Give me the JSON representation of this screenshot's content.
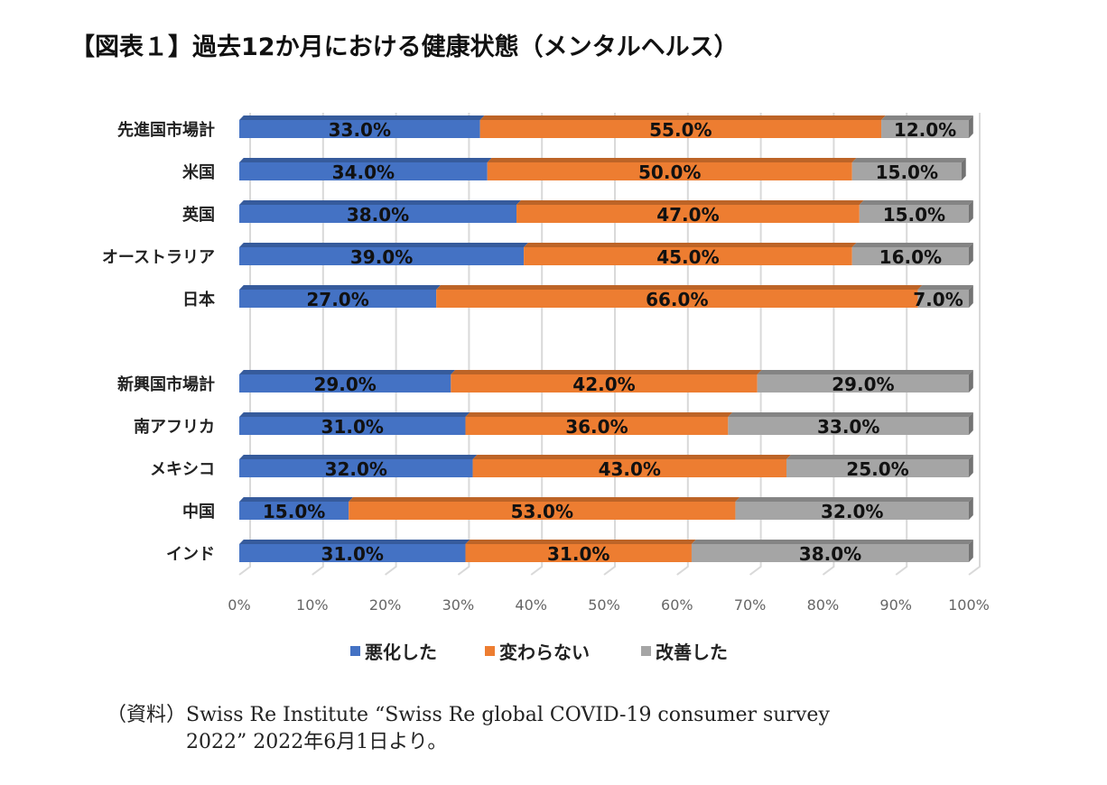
{
  "title": "【図表１】過去12か月における健康状態（メンタルヘルス）",
  "chart_data": {
    "type": "bar",
    "orientation": "horizontal",
    "stacked": "percent",
    "style": "3d",
    "categories": [
      "先進国市場計",
      "米国",
      "英国",
      "オーストラリア",
      "日本",
      "",
      "新興国市場計",
      "南アフリカ",
      "メキシコ",
      "中国",
      "インド"
    ],
    "series": [
      {
        "name": "悪化した",
        "color": "#4472C4",
        "values": [
          33,
          34,
          38,
          39,
          27,
          null,
          29,
          31,
          32,
          15,
          31
        ],
        "labels": [
          "33.0%",
          "34.0%",
          "38.0%",
          "39.0%",
          "27.0%",
          "",
          "29.0%",
          "31.0%",
          "32.0%",
          "15.0%",
          "31.0%"
        ]
      },
      {
        "name": "変わらない",
        "color": "#ED7D31",
        "values": [
          55,
          50,
          47,
          45,
          66,
          null,
          42,
          36,
          43,
          53,
          31
        ],
        "labels": [
          "55.0%",
          "50.0%",
          "47.0%",
          "45.0%",
          "66.0%",
          "",
          "42.0%",
          "36.0%",
          "43.0%",
          "53.0%",
          "31.0%"
        ]
      },
      {
        "name": "改善した",
        "color": "#A5A5A5",
        "values": [
          12,
          15,
          15,
          16,
          7,
          null,
          29,
          33,
          25,
          32,
          38
        ],
        "labels": [
          "12.0%",
          "15.0%",
          "15.0%",
          "16.0%",
          "7.0%",
          "",
          "29.0%",
          "33.0%",
          "25.0%",
          "32.0%",
          "38.0%"
        ]
      }
    ],
    "xlim": [
      0,
      100
    ],
    "xticks": [
      "0%",
      "10%",
      "20%",
      "30%",
      "40%",
      "50%",
      "60%",
      "70%",
      "80%",
      "90%",
      "100%"
    ],
    "grid": true,
    "legend": "bottom"
  },
  "source": {
    "line1": "（資料）Swiss Re Institute “Swiss Re global COVID-19 consumer survey",
    "line2": "2022” 2022年6月1日より。"
  }
}
